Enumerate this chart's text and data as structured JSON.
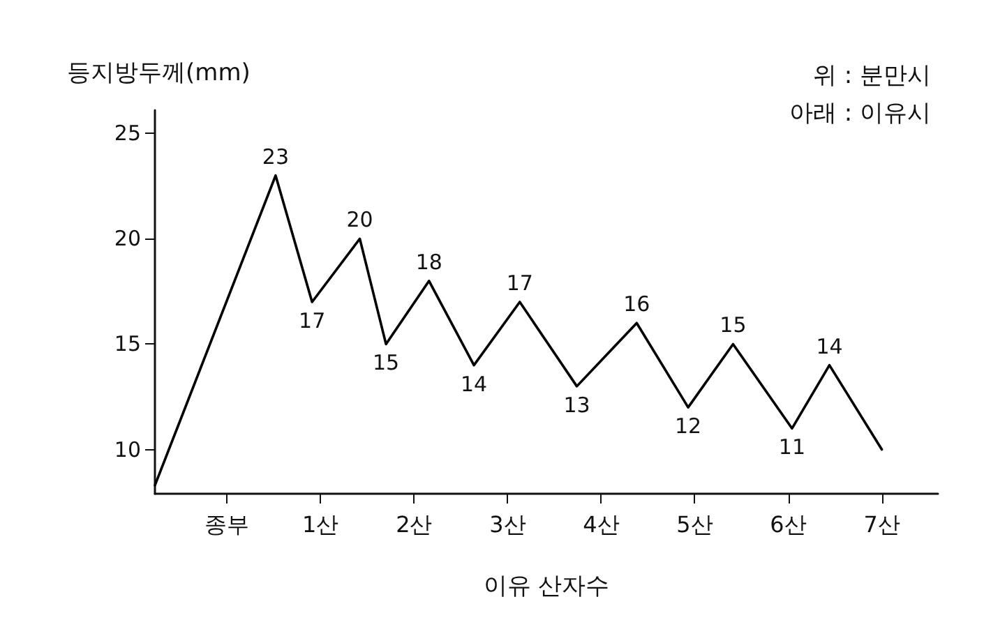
{
  "chart_data": {
    "type": "line",
    "ylabel": "등지방두께(mm)",
    "xlabel": "이유 산자수",
    "annotations": [
      "위 : 분만시",
      "아래 : 이유시"
    ],
    "x": [
      -0.77,
      0.52,
      0.91,
      1.42,
      1.7,
      2.16,
      2.64,
      3.13,
      3.74,
      4.38,
      4.93,
      5.41,
      6.04,
      6.44,
      7
    ],
    "series": [
      {
        "color": "#000000",
        "values": [
          8.3,
          23,
          17,
          20,
          15,
          18,
          14,
          17,
          13,
          16,
          12,
          15,
          11,
          14,
          10
        ],
        "value_labels": [
          null,
          "23",
          "17",
          "20",
          "15",
          "18",
          "14",
          "17",
          "13",
          "16",
          "12",
          "15",
          "11",
          "14",
          null
        ]
      }
    ],
    "xlim": [
      -0.77,
      7.6
    ],
    "xticks": [
      {
        "value": 0,
        "label": "종부"
      },
      {
        "value": 1,
        "label": "1산"
      },
      {
        "value": 2,
        "label": "2산"
      },
      {
        "value": 3,
        "label": "3산"
      },
      {
        "value": 4,
        "label": "4산"
      },
      {
        "value": 5,
        "label": "5산"
      },
      {
        "value": 6,
        "label": "6산"
      },
      {
        "value": 7,
        "label": "7산"
      }
    ],
    "ylim": [
      7.9,
      26.1
    ],
    "yticks": [
      10,
      15,
      20,
      25
    ],
    "grid": false,
    "marker": "none",
    "line_style": "solid"
  }
}
